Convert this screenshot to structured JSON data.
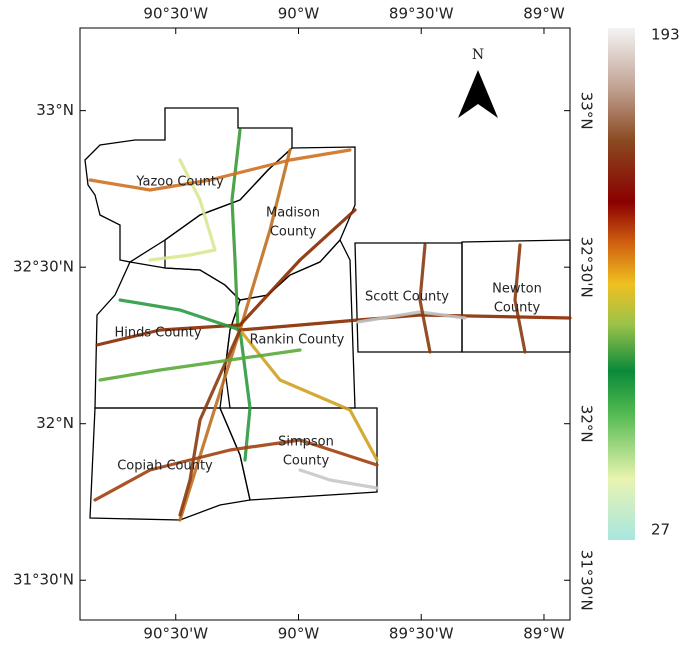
{
  "map": {
    "xlim": [
      -90.89,
      -88.894
    ],
    "ylim": [
      31.373,
      33.264
    ],
    "xticks": [
      {
        "value": -90.5,
        "label": "90°30'W"
      },
      {
        "value": -90,
        "label": "90°W"
      },
      {
        "value": -89.5,
        "label": "89°30'W"
      },
      {
        "value": -89,
        "label": "89°W"
      }
    ],
    "yticks": [
      {
        "value": 33,
        "label": "33°N"
      },
      {
        "value": 32.5,
        "label": "32°30'N"
      },
      {
        "value": 32,
        "label": "32°N"
      },
      {
        "value": 31.5,
        "label": "31°30'N"
      }
    ],
    "north_arrow": "N",
    "counties": [
      {
        "lines": [
          "Yazoo County"
        ]
      },
      {
        "lines": [
          "Madison",
          "County"
        ]
      },
      {
        "lines": [
          "Hinds County"
        ]
      },
      {
        "lines": [
          "Rankin County"
        ]
      },
      {
        "lines": [
          "Scott County"
        ]
      },
      {
        "lines": [
          "Newton",
          "County"
        ]
      },
      {
        "lines": [
          "Copiah County"
        ]
      },
      {
        "lines": [
          "Simpson",
          "County"
        ]
      }
    ]
  },
  "colorbar": {
    "min": 27,
    "max": 193
  }
}
